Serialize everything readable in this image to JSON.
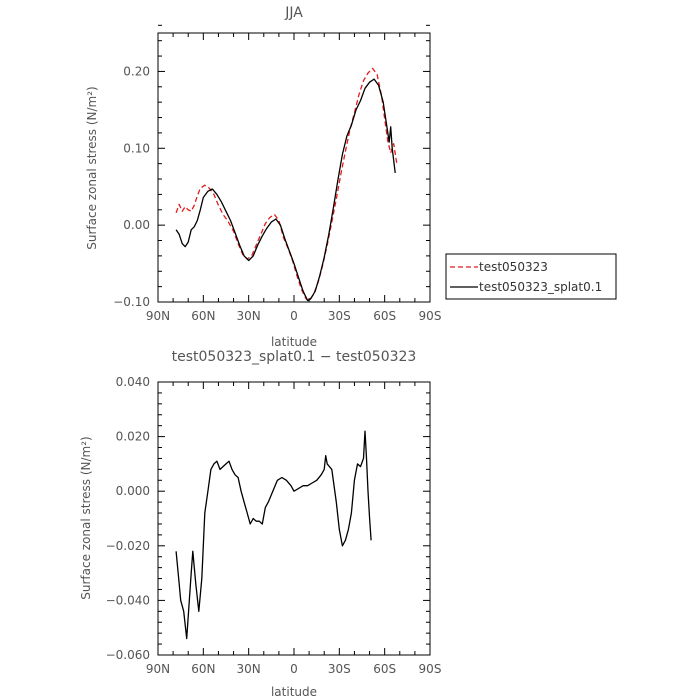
{
  "chart_data": [
    {
      "type": "line",
      "title": "JJA",
      "xlabel": "latitude",
      "ylabel": "Surface zonal stress (N/m²)",
      "xlim": [
        90,
        -90
      ],
      "ylim": [
        -0.1,
        0.25
      ],
      "x_ticks": [
        90,
        60,
        30,
        0,
        -30,
        -60,
        -90
      ],
      "x_tick_labels": [
        "90N",
        "60N",
        "30N",
        "0",
        "30S",
        "60S",
        "90S"
      ],
      "y_ticks": [
        -0.1,
        0.0,
        0.1,
        0.2
      ],
      "y_tick_labels": [
        "−0.10",
        "0.00",
        "0.10",
        "0.20"
      ],
      "legend_position": "right",
      "series": [
        {
          "name": "test050323",
          "color": "#e41a1c",
          "dash": "dashed",
          "points": [
            [
              78,
              0.016
            ],
            [
              76,
              0.027
            ],
            [
              74,
              0.018
            ],
            [
              72,
              0.024
            ],
            [
              70,
              0.02
            ],
            [
              68,
              0.018
            ],
            [
              66,
              0.026
            ],
            [
              64,
              0.038
            ],
            [
              62,
              0.048
            ],
            [
              59,
              0.052
            ],
            [
              56,
              0.048
            ],
            [
              53,
              0.04
            ],
            [
              50,
              0.026
            ],
            [
              47,
              0.014
            ],
            [
              44,
              0.006
            ],
            [
              40,
              -0.008
            ],
            [
              37,
              -0.024
            ],
            [
              34,
              -0.038
            ],
            [
              31,
              -0.044
            ],
            [
              28,
              -0.04
            ],
            [
              25,
              -0.026
            ],
            [
              22,
              -0.012
            ],
            [
              19,
              0.002
            ],
            [
              16,
              0.01
            ],
            [
              13,
              0.014
            ],
            [
              10,
              0.006
            ],
            [
              7,
              -0.016
            ],
            [
              4,
              -0.03
            ],
            [
              1,
              -0.046
            ],
            [
              -2,
              -0.066
            ],
            [
              -5,
              -0.084
            ],
            [
              -8,
              -0.096
            ],
            [
              -10,
              -0.098
            ],
            [
              -13,
              -0.09
            ],
            [
              -16,
              -0.074
            ],
            [
              -19,
              -0.052
            ],
            [
              -22,
              -0.026
            ],
            [
              -25,
              0.004
            ],
            [
              -28,
              0.034
            ],
            [
              -31,
              0.066
            ],
            [
              -34,
              0.096
            ],
            [
              -37,
              0.124
            ],
            [
              -40,
              0.146
            ],
            [
              -43,
              0.17
            ],
            [
              -46,
              0.188
            ],
            [
              -49,
              0.198
            ],
            [
              -52,
              0.204
            ],
            [
              -55,
              0.196
            ],
            [
              -58,
              0.168
            ],
            [
              -60,
              0.138
            ],
            [
              -62,
              0.11
            ],
            [
              -64,
              0.094
            ],
            [
              -66,
              0.106
            ],
            [
              -68,
              0.08
            ]
          ]
        },
        {
          "name": "test050323_splat0.1",
          "color": "#000000",
          "dash": "solid",
          "points": [
            [
              78,
              -0.006
            ],
            [
              76,
              -0.012
            ],
            [
              74,
              -0.024
            ],
            [
              72,
              -0.028
            ],
            [
              70,
              -0.022
            ],
            [
              68,
              -0.006
            ],
            [
              66,
              -0.002
            ],
            [
              64,
              0.006
            ],
            [
              62,
              0.02
            ],
            [
              60,
              0.036
            ],
            [
              57,
              0.044
            ],
            [
              54,
              0.047
            ],
            [
              51,
              0.04
            ],
            [
              48,
              0.03
            ],
            [
              45,
              0.018
            ],
            [
              42,
              0.006
            ],
            [
              39,
              -0.01
            ],
            [
              36,
              -0.026
            ],
            [
              33,
              -0.04
            ],
            [
              30,
              -0.046
            ],
            [
              27,
              -0.04
            ],
            [
              24,
              -0.026
            ],
            [
              21,
              -0.014
            ],
            [
              18,
              -0.004
            ],
            [
              15,
              0.004
            ],
            [
              12,
              0.008
            ],
            [
              9,
              0.0
            ],
            [
              6,
              -0.018
            ],
            [
              3,
              -0.034
            ],
            [
              0,
              -0.05
            ],
            [
              -3,
              -0.068
            ],
            [
              -6,
              -0.086
            ],
            [
              -9,
              -0.098
            ],
            [
              -11,
              -0.096
            ],
            [
              -14,
              -0.086
            ],
            [
              -17,
              -0.066
            ],
            [
              -20,
              -0.042
            ],
            [
              -23,
              -0.012
            ],
            [
              -26,
              0.022
            ],
            [
              -29,
              0.058
            ],
            [
              -32,
              0.092
            ],
            [
              -35,
              0.116
            ],
            [
              -38,
              0.13
            ],
            [
              -41,
              0.15
            ],
            [
              -44,
              0.162
            ],
            [
              -47,
              0.178
            ],
            [
              -50,
              0.186
            ],
            [
              -53,
              0.19
            ],
            [
              -56,
              0.182
            ],
            [
              -59,
              0.16
            ],
            [
              -61,
              0.134
            ],
            [
              -63,
              0.108
            ],
            [
              -64,
              0.128
            ],
            [
              -65,
              0.1
            ],
            [
              -66,
              0.084
            ],
            [
              -67,
              0.068
            ]
          ]
        }
      ]
    },
    {
      "type": "line",
      "title": "test050323_splat0.1 − test050323",
      "xlabel": "latitude",
      "ylabel": "Surface zonal stress (N/m²)",
      "xlim": [
        90,
        -90
      ],
      "ylim": [
        -0.06,
        0.04
      ],
      "x_ticks": [
        90,
        60,
        30,
        0,
        -30,
        -60,
        -90
      ],
      "x_tick_labels": [
        "90N",
        "60N",
        "30N",
        "0",
        "30S",
        "60S",
        "90S"
      ],
      "y_ticks": [
        -0.06,
        -0.04,
        -0.02,
        0.0,
        0.02,
        0.04
      ],
      "y_tick_labels": [
        "−0.060",
        "−0.040",
        "−0.020",
        "0.000",
        "0.020",
        "0.040"
      ],
      "series": [
        {
          "name": "",
          "color": "#000000",
          "dash": "solid",
          "points": [
            [
              78,
              -0.022
            ],
            [
              76,
              -0.034
            ],
            [
              75,
              -0.04
            ],
            [
              73,
              -0.044
            ],
            [
              71,
              -0.054
            ],
            [
              70,
              -0.046
            ],
            [
              68,
              -0.03
            ],
            [
              67,
              -0.022
            ],
            [
              65,
              -0.034
            ],
            [
              63,
              -0.044
            ],
            [
              61,
              -0.032
            ],
            [
              59,
              -0.008
            ],
            [
              57,
              0.0
            ],
            [
              55,
              0.008
            ],
            [
              53,
              0.01
            ],
            [
              51,
              0.011
            ],
            [
              49,
              0.008
            ],
            [
              47,
              0.009
            ],
            [
              45,
              0.01
            ],
            [
              43,
              0.011
            ],
            [
              41,
              0.008
            ],
            [
              39,
              0.006
            ],
            [
              37,
              0.005
            ],
            [
              35,
              0.0
            ],
            [
              33,
              -0.004
            ],
            [
              31,
              -0.008
            ],
            [
              29,
              -0.012
            ],
            [
              27,
              -0.01
            ],
            [
              25,
              -0.011
            ],
            [
              23,
              -0.011
            ],
            [
              21,
              -0.012
            ],
            [
              19,
              -0.006
            ],
            [
              17,
              -0.004
            ],
            [
              14,
              0.0
            ],
            [
              11,
              0.004
            ],
            [
              8,
              0.005
            ],
            [
              5,
              0.004
            ],
            [
              2,
              0.002
            ],
            [
              0,
              0.0
            ],
            [
              -3,
              0.001
            ],
            [
              -6,
              0.002
            ],
            [
              -9,
              0.002
            ],
            [
              -12,
              0.003
            ],
            [
              -15,
              0.004
            ],
            [
              -18,
              0.006
            ],
            [
              -20,
              0.008
            ],
            [
              -21,
              0.013
            ],
            [
              -22,
              0.01
            ],
            [
              -25,
              0.008
            ],
            [
              -28,
              -0.004
            ],
            [
              -30,
              -0.014
            ],
            [
              -32,
              -0.02
            ],
            [
              -34,
              -0.018
            ],
            [
              -36,
              -0.014
            ],
            [
              -38,
              -0.008
            ],
            [
              -40,
              0.004
            ],
            [
              -42,
              0.01
            ],
            [
              -44,
              0.009
            ],
            [
              -46,
              0.012
            ],
            [
              -47,
              0.022
            ],
            [
              -48,
              0.012
            ],
            [
              -49,
              0.0
            ],
            [
              -50,
              -0.01
            ],
            [
              -51,
              -0.018
            ]
          ]
        }
      ]
    }
  ]
}
